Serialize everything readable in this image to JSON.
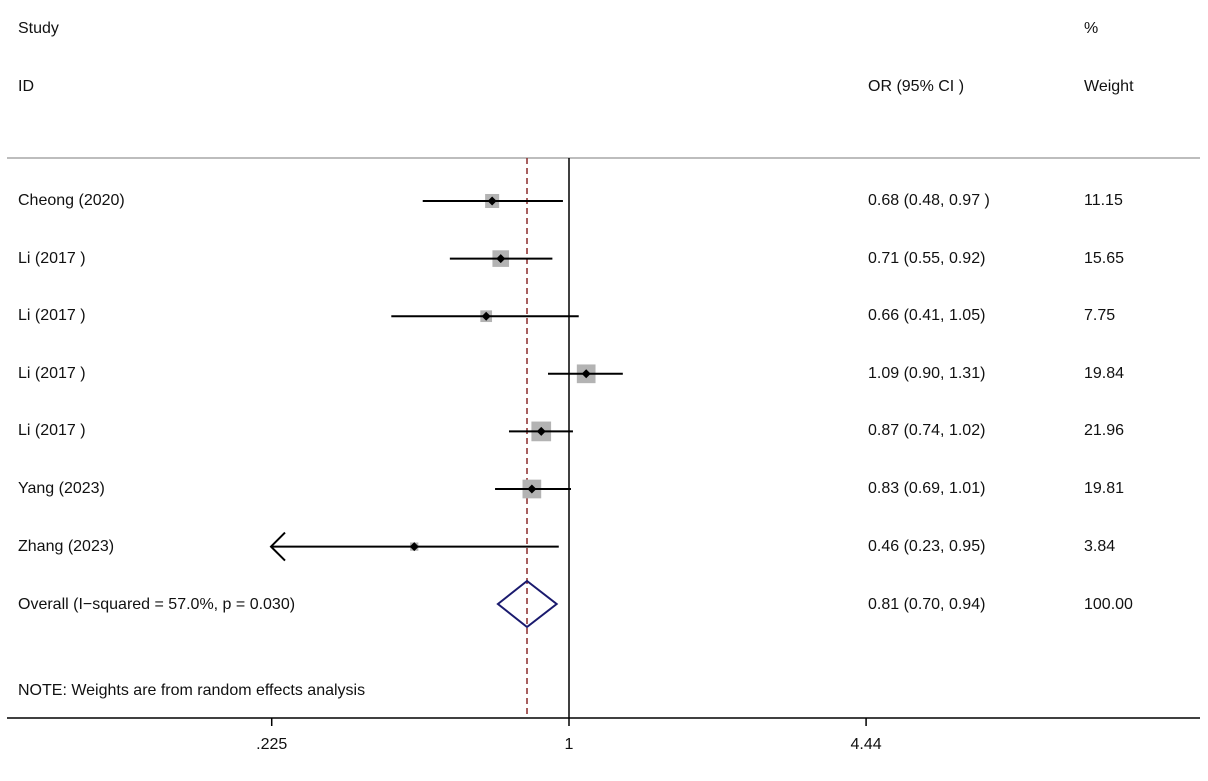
{
  "header": {
    "study_label": "Study",
    "id_label": "ID",
    "or_label": "OR (95% CI )",
    "pct_label": "%",
    "weight_label": "Weight"
  },
  "chart_data": {
    "type": "forest",
    "x_scale": "log",
    "x_ticks": [
      {
        "value": 0.225,
        "label": ".225"
      },
      {
        "value": 1,
        "label": "1"
      },
      {
        "value": 4.44,
        "label": "4.44"
      }
    ],
    "null_line": 1,
    "pooled_line": 0.81,
    "studies": [
      {
        "label": "Cheong (2020)",
        "or": 0.68,
        "lo": 0.48,
        "hi": 0.97,
        "or_text": "0.68 (0.48, 0.97 )",
        "weight": 11.15,
        "weight_text": "11.15",
        "arrow_left": false
      },
      {
        "label": "Li (2017 )",
        "or": 0.71,
        "lo": 0.55,
        "hi": 0.92,
        "or_text": "0.71 (0.55, 0.92)",
        "weight": 15.65,
        "weight_text": "15.65",
        "arrow_left": false
      },
      {
        "label": "Li (2017 )",
        "or": 0.66,
        "lo": 0.41,
        "hi": 1.05,
        "or_text": "0.66 (0.41, 1.05)",
        "weight": 7.75,
        "weight_text": "7.75",
        "arrow_left": false
      },
      {
        "label": "Li (2017 )",
        "or": 1.09,
        "lo": 0.9,
        "hi": 1.31,
        "or_text": "1.09 (0.90, 1.31)",
        "weight": 19.84,
        "weight_text": "19.84",
        "arrow_left": false
      },
      {
        "label": "Li (2017 )",
        "or": 0.87,
        "lo": 0.74,
        "hi": 1.02,
        "or_text": "0.87 (0.74, 1.02)",
        "weight": 21.96,
        "weight_text": "21.96",
        "arrow_left": false
      },
      {
        "label": "Yang (2023)",
        "or": 0.83,
        "lo": 0.69,
        "hi": 1.01,
        "or_text": "0.83 (0.69, 1.01)",
        "weight": 19.81,
        "weight_text": "19.81",
        "arrow_left": false
      },
      {
        "label": "Zhang (2023)",
        "or": 0.46,
        "lo": 0.23,
        "hi": 0.95,
        "or_text": "0.46 (0.23, 0.95)",
        "weight": 3.84,
        "weight_text": "3.84",
        "arrow_left": true
      }
    ],
    "overall": {
      "label": "Overall  (I−squared = 57.0%, p = 0.030)",
      "or": 0.81,
      "lo": 0.7,
      "hi": 0.94,
      "or_text": "0.81 (0.70, 0.94)",
      "weight_text": "100.00"
    },
    "note": "NOTE: Weights are from random effects analysis",
    "colors": {
      "box": "#b3b3b3",
      "diamond": "#1a1a6e",
      "pooled_line": "#8b2a2a",
      "axis": "#000000",
      "separator": "#bdbdbd"
    }
  }
}
